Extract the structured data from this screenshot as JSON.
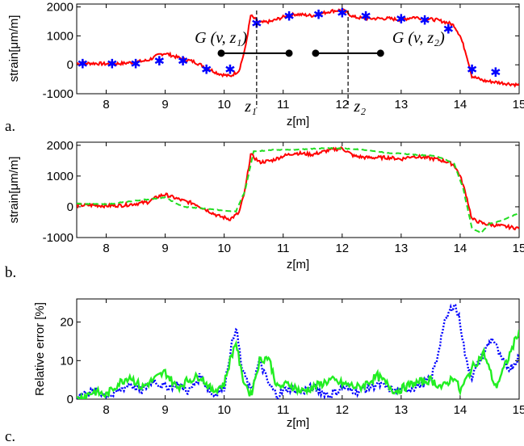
{
  "chart_data": [
    {
      "panel_label": "a.",
      "type": "line",
      "xlabel": "z[m]",
      "ylabel": "strain[μm/m]",
      "xlim": [
        7.5,
        15
      ],
      "ylim": [
        -1000,
        2100
      ],
      "x_ticks": [
        8,
        9,
        10,
        11,
        12,
        13,
        14,
        15
      ],
      "y_ticks": [
        -1000,
        0,
        1000,
        2000
      ],
      "series": [
        {
          "color": "#ff0000",
          "style": "solid",
          "x": [
            7.5,
            7.8,
            8.0,
            8.3,
            8.5,
            8.7,
            8.9,
            9.0,
            9.1,
            9.3,
            9.5,
            9.7,
            9.9,
            10.1,
            10.25,
            10.35,
            10.45,
            10.6,
            10.8,
            11.0,
            11.2,
            11.5,
            11.8,
            12.0,
            12.2,
            12.4,
            12.6,
            12.8,
            13.0,
            13.2,
            13.4,
            13.6,
            13.8,
            13.9,
            14.0,
            14.1,
            14.2,
            14.4,
            14.6,
            14.8,
            15.0
          ],
          "y": [
            50,
            50,
            30,
            50,
            100,
            150,
            350,
            400,
            330,
            200,
            100,
            -100,
            -300,
            -400,
            -200,
            500,
            1700,
            1450,
            1500,
            1650,
            1750,
            1700,
            1850,
            1900,
            1650,
            1600,
            1600,
            1600,
            1550,
            1650,
            1600,
            1550,
            1450,
            1350,
            1000,
            400,
            -400,
            -550,
            -600,
            -650,
            -700
          ]
        },
        {
          "color": "#0000ff",
          "style": "markers",
          "x": [
            7.6,
            8.1,
            8.5,
            8.9,
            9.3,
            9.7,
            10.1,
            10.55,
            11.1,
            11.6,
            12.0,
            12.4,
            13.0,
            13.4,
            13.8,
            14.2,
            14.6
          ],
          "y": [
            50,
            50,
            50,
            150,
            150,
            -150,
            -150,
            1450,
            1700,
            1750,
            1800,
            1700,
            1600,
            1550,
            1250,
            -150,
            -250
          ]
        }
      ],
      "annotations": {
        "g1": "G (v, z₁)",
        "g2": "G (v, z₂)",
        "z1": "z₁",
        "z2": "z₂"
      }
    },
    {
      "panel_label": "b.",
      "type": "line",
      "xlabel": "z[m]",
      "ylabel": "strain[μm/m]",
      "xlim": [
        7.5,
        15
      ],
      "ylim": [
        -1000,
        2100
      ],
      "x_ticks": [
        8,
        9,
        10,
        11,
        12,
        13,
        14,
        15
      ],
      "y_ticks": [
        -1000,
        0,
        1000,
        2000
      ],
      "series": [
        {
          "color": "#ff0000",
          "style": "solid",
          "x": [
            7.5,
            7.8,
            8.0,
            8.3,
            8.5,
            8.7,
            8.9,
            9.0,
            9.1,
            9.3,
            9.5,
            9.7,
            9.9,
            10.1,
            10.25,
            10.35,
            10.45,
            10.6,
            10.8,
            11.0,
            11.2,
            11.5,
            11.8,
            12.0,
            12.2,
            12.4,
            12.6,
            12.8,
            13.0,
            13.2,
            13.4,
            13.6,
            13.8,
            13.9,
            14.0,
            14.1,
            14.2,
            14.4,
            14.6,
            14.8,
            15.0
          ],
          "y": [
            50,
            50,
            30,
            50,
            100,
            150,
            350,
            400,
            330,
            200,
            100,
            -100,
            -300,
            -400,
            -200,
            500,
            1700,
            1450,
            1500,
            1650,
            1750,
            1700,
            1850,
            1900,
            1650,
            1600,
            1600,
            1600,
            1550,
            1650,
            1600,
            1550,
            1450,
            1350,
            1000,
            400,
            -400,
            -550,
            -600,
            -650,
            -700
          ]
        },
        {
          "color": "#22dd22",
          "style": "dashed",
          "x": [
            7.5,
            8.0,
            8.5,
            9.0,
            9.3,
            9.6,
            9.9,
            10.2,
            10.35,
            10.5,
            10.8,
            11.2,
            11.6,
            12.0,
            12.4,
            12.8,
            13.2,
            13.6,
            13.9,
            14.05,
            14.2,
            14.35,
            14.5,
            14.7,
            15.0
          ],
          "y": [
            100,
            80,
            200,
            300,
            0,
            -50,
            -100,
            -150,
            500,
            1800,
            1850,
            1850,
            1900,
            1900,
            1850,
            1750,
            1700,
            1650,
            1400,
            600,
            -700,
            -850,
            -550,
            -450,
            -200
          ]
        }
      ]
    },
    {
      "panel_label": "c.",
      "type": "line",
      "xlabel": "z[m]",
      "ylabel": "Relative error [%]",
      "xlim": [
        7.5,
        15
      ],
      "ylim": [
        0,
        26
      ],
      "x_ticks": [
        8,
        9,
        10,
        11,
        12,
        13,
        14,
        15
      ],
      "y_ticks": [
        0,
        10,
        20
      ],
      "series": [
        {
          "color": "#0000ff",
          "style": "dotted",
          "x": [
            7.5,
            7.8,
            8.1,
            8.4,
            8.6,
            8.8,
            9.0,
            9.2,
            9.4,
            9.6,
            9.8,
            10.0,
            10.1,
            10.2,
            10.3,
            10.45,
            10.6,
            10.75,
            10.9,
            11.1,
            11.3,
            11.5,
            11.8,
            12.0,
            12.3,
            12.6,
            12.9,
            13.2,
            13.5,
            13.6,
            13.7,
            13.8,
            13.9,
            14.0,
            14.1,
            14.2,
            14.4,
            14.55,
            14.7,
            14.85,
            15.0
          ],
          "y": [
            1,
            2,
            1,
            4,
            2,
            5,
            3,
            4,
            2,
            6,
            1,
            3,
            12,
            19,
            8,
            2,
            10,
            4,
            1,
            3,
            2,
            3,
            1,
            3,
            2,
            4,
            2,
            3,
            5,
            10,
            18,
            22,
            25,
            20,
            10,
            6,
            12,
            16,
            10,
            8,
            11
          ]
        },
        {
          "color": "#22ee22",
          "style": "solid",
          "x": [
            7.5,
            7.8,
            8.0,
            8.2,
            8.4,
            8.6,
            8.8,
            9.0,
            9.2,
            9.4,
            9.6,
            9.8,
            10.0,
            10.1,
            10.2,
            10.3,
            10.45,
            10.6,
            10.75,
            10.9,
            11.1,
            11.3,
            11.5,
            11.8,
            12.0,
            12.3,
            12.6,
            12.9,
            13.2,
            13.5,
            13.7,
            13.9,
            14.0,
            14.2,
            14.4,
            14.6,
            14.8,
            15.0
          ],
          "y": [
            0,
            2,
            1,
            4,
            6,
            3,
            5,
            7,
            3,
            5,
            6,
            2,
            4,
            10,
            15,
            6,
            1,
            10,
            11,
            3,
            4,
            2,
            3,
            5,
            4,
            3,
            6,
            2,
            4,
            5,
            3,
            6,
            2,
            8,
            12,
            3,
            10,
            18
          ]
        }
      ]
    }
  ]
}
